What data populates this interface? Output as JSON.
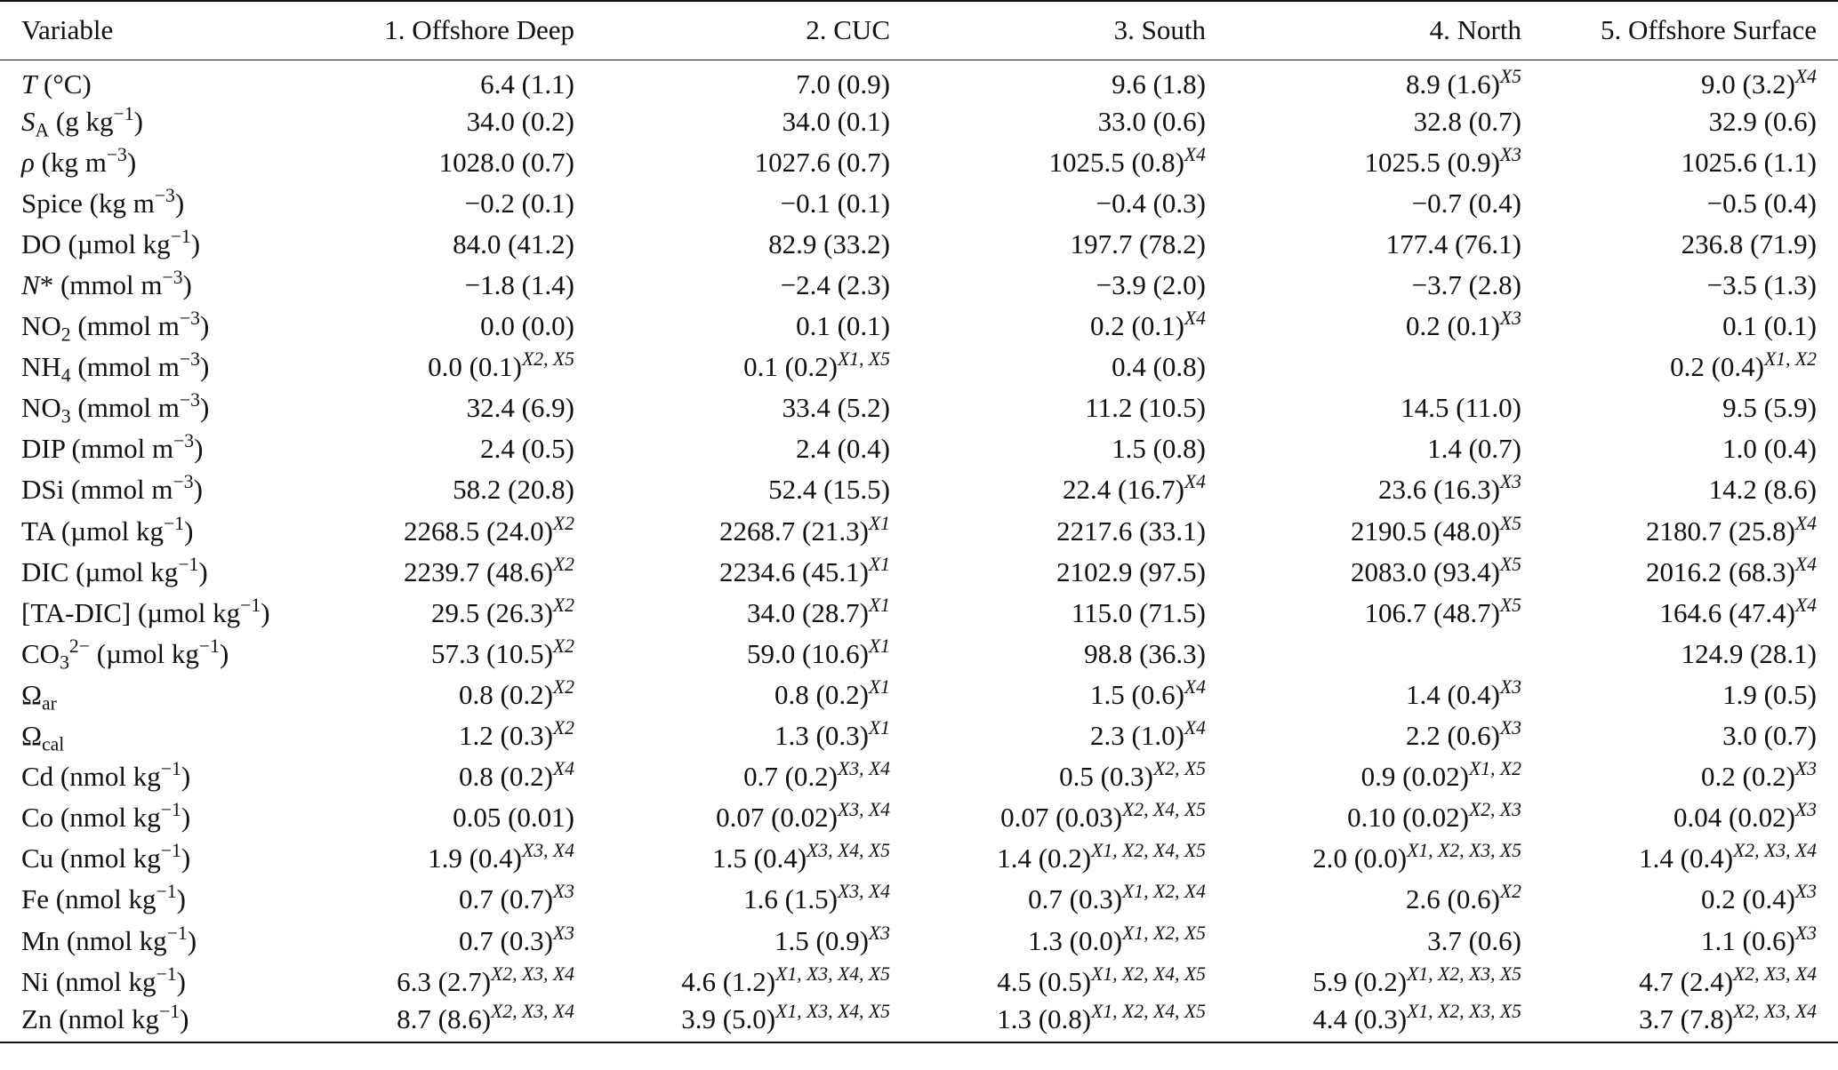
{
  "table": {
    "headers": [
      "Variable",
      "1. Offshore Deep",
      "2. CUC",
      "3. South",
      "4. North",
      "5. Offshore Surface"
    ],
    "rows": [
      {
        "var": [
          [
            "i",
            "T"
          ],
          [
            "t",
            " (°C)"
          ]
        ],
        "cells": [
          [
            "6.4 (1.1)",
            ""
          ],
          [
            "7.0 (0.9)",
            ""
          ],
          [
            "9.6 (1.8)",
            ""
          ],
          [
            "8.9 (1.6)",
            "X5"
          ],
          [
            "9.0 (3.2)",
            "X4"
          ]
        ]
      },
      {
        "var": [
          [
            "i",
            "S"
          ],
          [
            "sub",
            "A"
          ],
          [
            "t",
            " (g kg"
          ],
          [
            "sup",
            "−1"
          ],
          [
            "t",
            ")"
          ]
        ],
        "cells": [
          [
            "34.0 (0.2)",
            ""
          ],
          [
            "34.0 (0.1)",
            ""
          ],
          [
            "33.0 (0.6)",
            ""
          ],
          [
            "32.8 (0.7)",
            ""
          ],
          [
            "32.9 (0.6)",
            ""
          ]
        ]
      },
      {
        "var": [
          [
            "i",
            "ρ"
          ],
          [
            "t",
            " (kg m"
          ],
          [
            "sup",
            "−3"
          ],
          [
            "t",
            ")"
          ]
        ],
        "cells": [
          [
            "1028.0 (0.7)",
            ""
          ],
          [
            "1027.6 (0.7)",
            ""
          ],
          [
            "1025.5 (0.8)",
            "X4"
          ],
          [
            "1025.5 (0.9)",
            "X3"
          ],
          [
            "1025.6 (1.1)",
            ""
          ]
        ]
      },
      {
        "var": [
          [
            "t",
            "Spice (kg m"
          ],
          [
            "sup",
            "−3"
          ],
          [
            "t",
            ")"
          ]
        ],
        "cells": [
          [
            "−0.2 (0.1)",
            ""
          ],
          [
            "−0.1 (0.1)",
            ""
          ],
          [
            "−0.4 (0.3)",
            ""
          ],
          [
            "−0.7 (0.4)",
            ""
          ],
          [
            "−0.5 (0.4)",
            ""
          ]
        ]
      },
      {
        "var": [
          [
            "t",
            "DO (µmol kg"
          ],
          [
            "sup",
            "−1"
          ],
          [
            "t",
            ")"
          ]
        ],
        "cells": [
          [
            "84.0 (41.2)",
            ""
          ],
          [
            "82.9 (33.2)",
            ""
          ],
          [
            "197.7 (78.2)",
            ""
          ],
          [
            "177.4 (76.1)",
            ""
          ],
          [
            "236.8 (71.9)",
            ""
          ]
        ]
      },
      {
        "var": [
          [
            "i",
            "N"
          ],
          [
            "t",
            "* (mmol m"
          ],
          [
            "sup",
            "−3"
          ],
          [
            "t",
            ")"
          ]
        ],
        "cells": [
          [
            "−1.8 (1.4)",
            ""
          ],
          [
            "−2.4 (2.3)",
            ""
          ],
          [
            "−3.9 (2.0)",
            ""
          ],
          [
            "−3.7 (2.8)",
            ""
          ],
          [
            "−3.5 (1.3)",
            ""
          ]
        ]
      },
      {
        "var": [
          [
            "t",
            "NO"
          ],
          [
            "sub",
            "2"
          ],
          [
            "t",
            " (mmol m"
          ],
          [
            "sup",
            "−3"
          ],
          [
            "t",
            ")"
          ]
        ],
        "cells": [
          [
            "0.0 (0.0)",
            ""
          ],
          [
            "0.1 (0.1)",
            ""
          ],
          [
            "0.2 (0.1)",
            "X4"
          ],
          [
            "0.2 (0.1)",
            "X3"
          ],
          [
            "0.1 (0.1)",
            ""
          ]
        ]
      },
      {
        "var": [
          [
            "t",
            "NH"
          ],
          [
            "sub",
            "4"
          ],
          [
            "t",
            " (mmol m"
          ],
          [
            "sup",
            "−3"
          ],
          [
            "t",
            ")"
          ]
        ],
        "cells": [
          [
            "0.0 (0.1)",
            "X2, X5"
          ],
          [
            "0.1 (0.2)",
            "X1, X5"
          ],
          [
            "0.4 (0.8)",
            ""
          ],
          [
            "",
            ""
          ],
          [
            "0.2 (0.4)",
            "X1, X2"
          ]
        ]
      },
      {
        "var": [
          [
            "t",
            "NO"
          ],
          [
            "sub",
            "3"
          ],
          [
            "t",
            " (mmol m"
          ],
          [
            "sup",
            "−3"
          ],
          [
            "t",
            ")"
          ]
        ],
        "cells": [
          [
            "32.4 (6.9)",
            ""
          ],
          [
            "33.4 (5.2)",
            ""
          ],
          [
            "11.2 (10.5)",
            ""
          ],
          [
            "14.5 (11.0)",
            ""
          ],
          [
            "9.5 (5.9)",
            ""
          ]
        ]
      },
      {
        "var": [
          [
            "t",
            "DIP (mmol m"
          ],
          [
            "sup",
            "−3"
          ],
          [
            "t",
            ")"
          ]
        ],
        "cells": [
          [
            "2.4 (0.5)",
            ""
          ],
          [
            "2.4 (0.4)",
            ""
          ],
          [
            "1.5 (0.8)",
            ""
          ],
          [
            "1.4 (0.7)",
            ""
          ],
          [
            "1.0 (0.4)",
            ""
          ]
        ]
      },
      {
        "var": [
          [
            "t",
            "DSi (mmol m"
          ],
          [
            "sup",
            "−3"
          ],
          [
            "t",
            ")"
          ]
        ],
        "cells": [
          [
            "58.2 (20.8)",
            ""
          ],
          [
            "52.4 (15.5)",
            ""
          ],
          [
            "22.4 (16.7)",
            "X4"
          ],
          [
            "23.6 (16.3)",
            "X3"
          ],
          [
            "14.2 (8.6)",
            ""
          ]
        ]
      },
      {
        "var": [
          [
            "t",
            "TA (µmol kg"
          ],
          [
            "sup",
            "−1"
          ],
          [
            "t",
            ")"
          ]
        ],
        "cells": [
          [
            "2268.5 (24.0)",
            "X2"
          ],
          [
            "2268.7 (21.3)",
            "X1"
          ],
          [
            "2217.6 (33.1)",
            ""
          ],
          [
            "2190.5 (48.0)",
            "X5"
          ],
          [
            "2180.7 (25.8)",
            "X4"
          ]
        ]
      },
      {
        "var": [
          [
            "t",
            "DIC (µmol kg"
          ],
          [
            "sup",
            "−1"
          ],
          [
            "t",
            ")"
          ]
        ],
        "cells": [
          [
            "2239.7 (48.6)",
            "X2"
          ],
          [
            "2234.6 (45.1)",
            "X1"
          ],
          [
            "2102.9 (97.5)",
            ""
          ],
          [
            "2083.0 (93.4)",
            "X5"
          ],
          [
            "2016.2 (68.3)",
            "X4"
          ]
        ]
      },
      {
        "var": [
          [
            "t",
            "[TA-DIC] (µmol kg"
          ],
          [
            "sup",
            "−1"
          ],
          [
            "t",
            ")"
          ]
        ],
        "cells": [
          [
            "29.5 (26.3)",
            "X2"
          ],
          [
            "34.0 (28.7)",
            "X1"
          ],
          [
            "115.0 (71.5)",
            ""
          ],
          [
            "106.7 (48.7)",
            "X5"
          ],
          [
            "164.6 (47.4)",
            "X4"
          ]
        ]
      },
      {
        "var": [
          [
            "t",
            "CO"
          ],
          [
            "sub",
            "3"
          ],
          [
            "sup",
            "2−"
          ],
          [
            "t",
            " (µmol kg"
          ],
          [
            "sup",
            "−1"
          ],
          [
            "t",
            ")"
          ]
        ],
        "cells": [
          [
            "57.3 (10.5)",
            "X2"
          ],
          [
            "59.0 (10.6)",
            "X1"
          ],
          [
            "98.8 (36.3)",
            ""
          ],
          [
            "",
            ""
          ],
          [
            "124.9 (28.1)",
            ""
          ]
        ]
      },
      {
        "var": [
          [
            "t",
            "Ω"
          ],
          [
            "sub",
            "ar"
          ]
        ],
        "cells": [
          [
            "0.8 (0.2)",
            "X2"
          ],
          [
            "0.8 (0.2)",
            "X1"
          ],
          [
            "1.5 (0.6)",
            "X4"
          ],
          [
            "1.4 (0.4)",
            "X3"
          ],
          [
            "1.9 (0.5)",
            ""
          ]
        ]
      },
      {
        "var": [
          [
            "t",
            "Ω"
          ],
          [
            "sub",
            "cal"
          ]
        ],
        "cells": [
          [
            "1.2 (0.3)",
            "X2"
          ],
          [
            "1.3 (0.3)",
            "X1"
          ],
          [
            "2.3 (1.0)",
            "X4"
          ],
          [
            "2.2 (0.6)",
            "X3"
          ],
          [
            "3.0 (0.7)",
            ""
          ]
        ]
      },
      {
        "var": [
          [
            "t",
            "Cd (nmol kg"
          ],
          [
            "sup",
            "−1"
          ],
          [
            "t",
            ")"
          ]
        ],
        "cells": [
          [
            "0.8 (0.2)",
            "X4"
          ],
          [
            "0.7 (0.2)",
            "X3, X4"
          ],
          [
            "0.5 (0.3)",
            "X2, X5"
          ],
          [
            "0.9 (0.02)",
            "X1, X2"
          ],
          [
            "0.2 (0.2)",
            "X3"
          ]
        ]
      },
      {
        "var": [
          [
            "t",
            "Co (nmol kg"
          ],
          [
            "sup",
            "−1"
          ],
          [
            "t",
            ")"
          ]
        ],
        "cells": [
          [
            "0.05 (0.01)",
            ""
          ],
          [
            "0.07 (0.02)",
            "X3, X4"
          ],
          [
            "0.07 (0.03)",
            "X2, X4, X5"
          ],
          [
            "0.10 (0.02)",
            "X2, X3"
          ],
          [
            "0.04 (0.02)",
            "X3"
          ]
        ]
      },
      {
        "var": [
          [
            "t",
            "Cu (nmol kg"
          ],
          [
            "sup",
            "−1"
          ],
          [
            "t",
            ")"
          ]
        ],
        "cells": [
          [
            "1.9 (0.4)",
            "X3, X4"
          ],
          [
            "1.5 (0.4)",
            "X3, X4, X5"
          ],
          [
            "1.4 (0.2)",
            "X1, X2, X4, X5"
          ],
          [
            "2.0 (0.0)",
            "X1, X2, X3, X5"
          ],
          [
            "1.4 (0.4)",
            "X2, X3, X4"
          ]
        ]
      },
      {
        "var": [
          [
            "t",
            "Fe (nmol kg"
          ],
          [
            "sup",
            "−1"
          ],
          [
            "t",
            ")"
          ]
        ],
        "cells": [
          [
            "0.7 (0.7)",
            "X3"
          ],
          [
            "1.6 (1.5)",
            "X3, X4"
          ],
          [
            "0.7 (0.3)",
            "X1, X2, X4"
          ],
          [
            "2.6 (0.6)",
            "X2"
          ],
          [
            "0.2 (0.4)",
            "X3"
          ]
        ]
      },
      {
        "var": [
          [
            "t",
            "Mn (nmol kg"
          ],
          [
            "sup",
            "−1"
          ],
          [
            "t",
            ")"
          ]
        ],
        "cells": [
          [
            "0.7 (0.3)",
            "X3"
          ],
          [
            "1.5 (0.9)",
            "X3"
          ],
          [
            "1.3 (0.0)",
            "X1, X2, X5"
          ],
          [
            "3.7 (0.6)",
            ""
          ],
          [
            "1.1 (0.6)",
            "X3"
          ]
        ]
      },
      {
        "var": [
          [
            "t",
            "Ni (nmol kg"
          ],
          [
            "sup",
            "−1"
          ],
          [
            "t",
            ")"
          ]
        ],
        "cells": [
          [
            "6.3 (2.7)",
            "X2, X3, X4"
          ],
          [
            "4.6 (1.2)",
            "X1, X3, X4, X5"
          ],
          [
            "4.5 (0.5)",
            "X1, X2, X4, X5"
          ],
          [
            "5.9 (0.2)",
            "X1, X2, X3, X5"
          ],
          [
            "4.7 (2.4)",
            "X2, X3, X4"
          ]
        ]
      },
      {
        "var": [
          [
            "t",
            "Zn (nmol kg"
          ],
          [
            "sup",
            "−1"
          ],
          [
            "t",
            ")"
          ]
        ],
        "cells": [
          [
            "8.7 (8.6)",
            "X2, X3, X4"
          ],
          [
            "3.9 (5.0)",
            "X1, X3, X4, X5"
          ],
          [
            "1.3 (0.8)",
            "X1, X2, X4, X5"
          ],
          [
            "4.4 (0.3)",
            "X1, X2, X3, X5"
          ],
          [
            "3.7 (7.8)",
            "X2, X3, X4"
          ]
        ]
      }
    ]
  }
}
